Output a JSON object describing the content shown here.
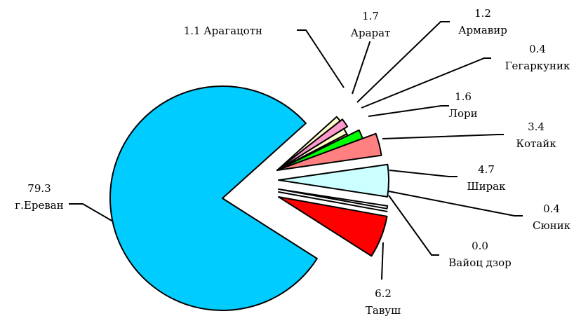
{
  "chart_data": {
    "type": "pie",
    "exploded": true,
    "data_labels": "value and category, with leader lines",
    "slices": [
      {
        "category": "г.Ереван",
        "value_label": "79.3",
        "value": 79.3,
        "color": "#00CCFF"
      },
      {
        "category": "Арагацотн",
        "value_label": "1.1",
        "value": 1.1,
        "color": "#FFFFCC"
      },
      {
        "category": "Арарат",
        "value_label": "1.7",
        "value": 1.7,
        "color": "#FF99CC"
      },
      {
        "category": "Армавир",
        "value_label": "1.2",
        "value": 1.2,
        "color": "#FFFFCC"
      },
      {
        "category": "Гегаркуник",
        "value_label": "0.4",
        "value": 0.4,
        "color": "#CCCC66"
      },
      {
        "category": "Лори",
        "value_label": "1.6",
        "value": 1.6,
        "color": "#00FF00"
      },
      {
        "category": "Котайк",
        "value_label": "3.4",
        "value": 3.4,
        "color": "#FF8080"
      },
      {
        "category": "Ширак",
        "value_label": "4.7",
        "value": 4.7,
        "color": "#CCFFFF"
      },
      {
        "category": "Сюник",
        "value_label": "0.4",
        "value": 0.4,
        "color": "#FFFFFF"
      },
      {
        "category": "Вайоц дзор",
        "value_label": "0.0",
        "value": 0.0,
        "color": "#FFFFFF"
      },
      {
        "category": "Тавуш",
        "value_label": "6.2",
        "value": 6.2,
        "color": "#FF0000"
      }
    ]
  }
}
